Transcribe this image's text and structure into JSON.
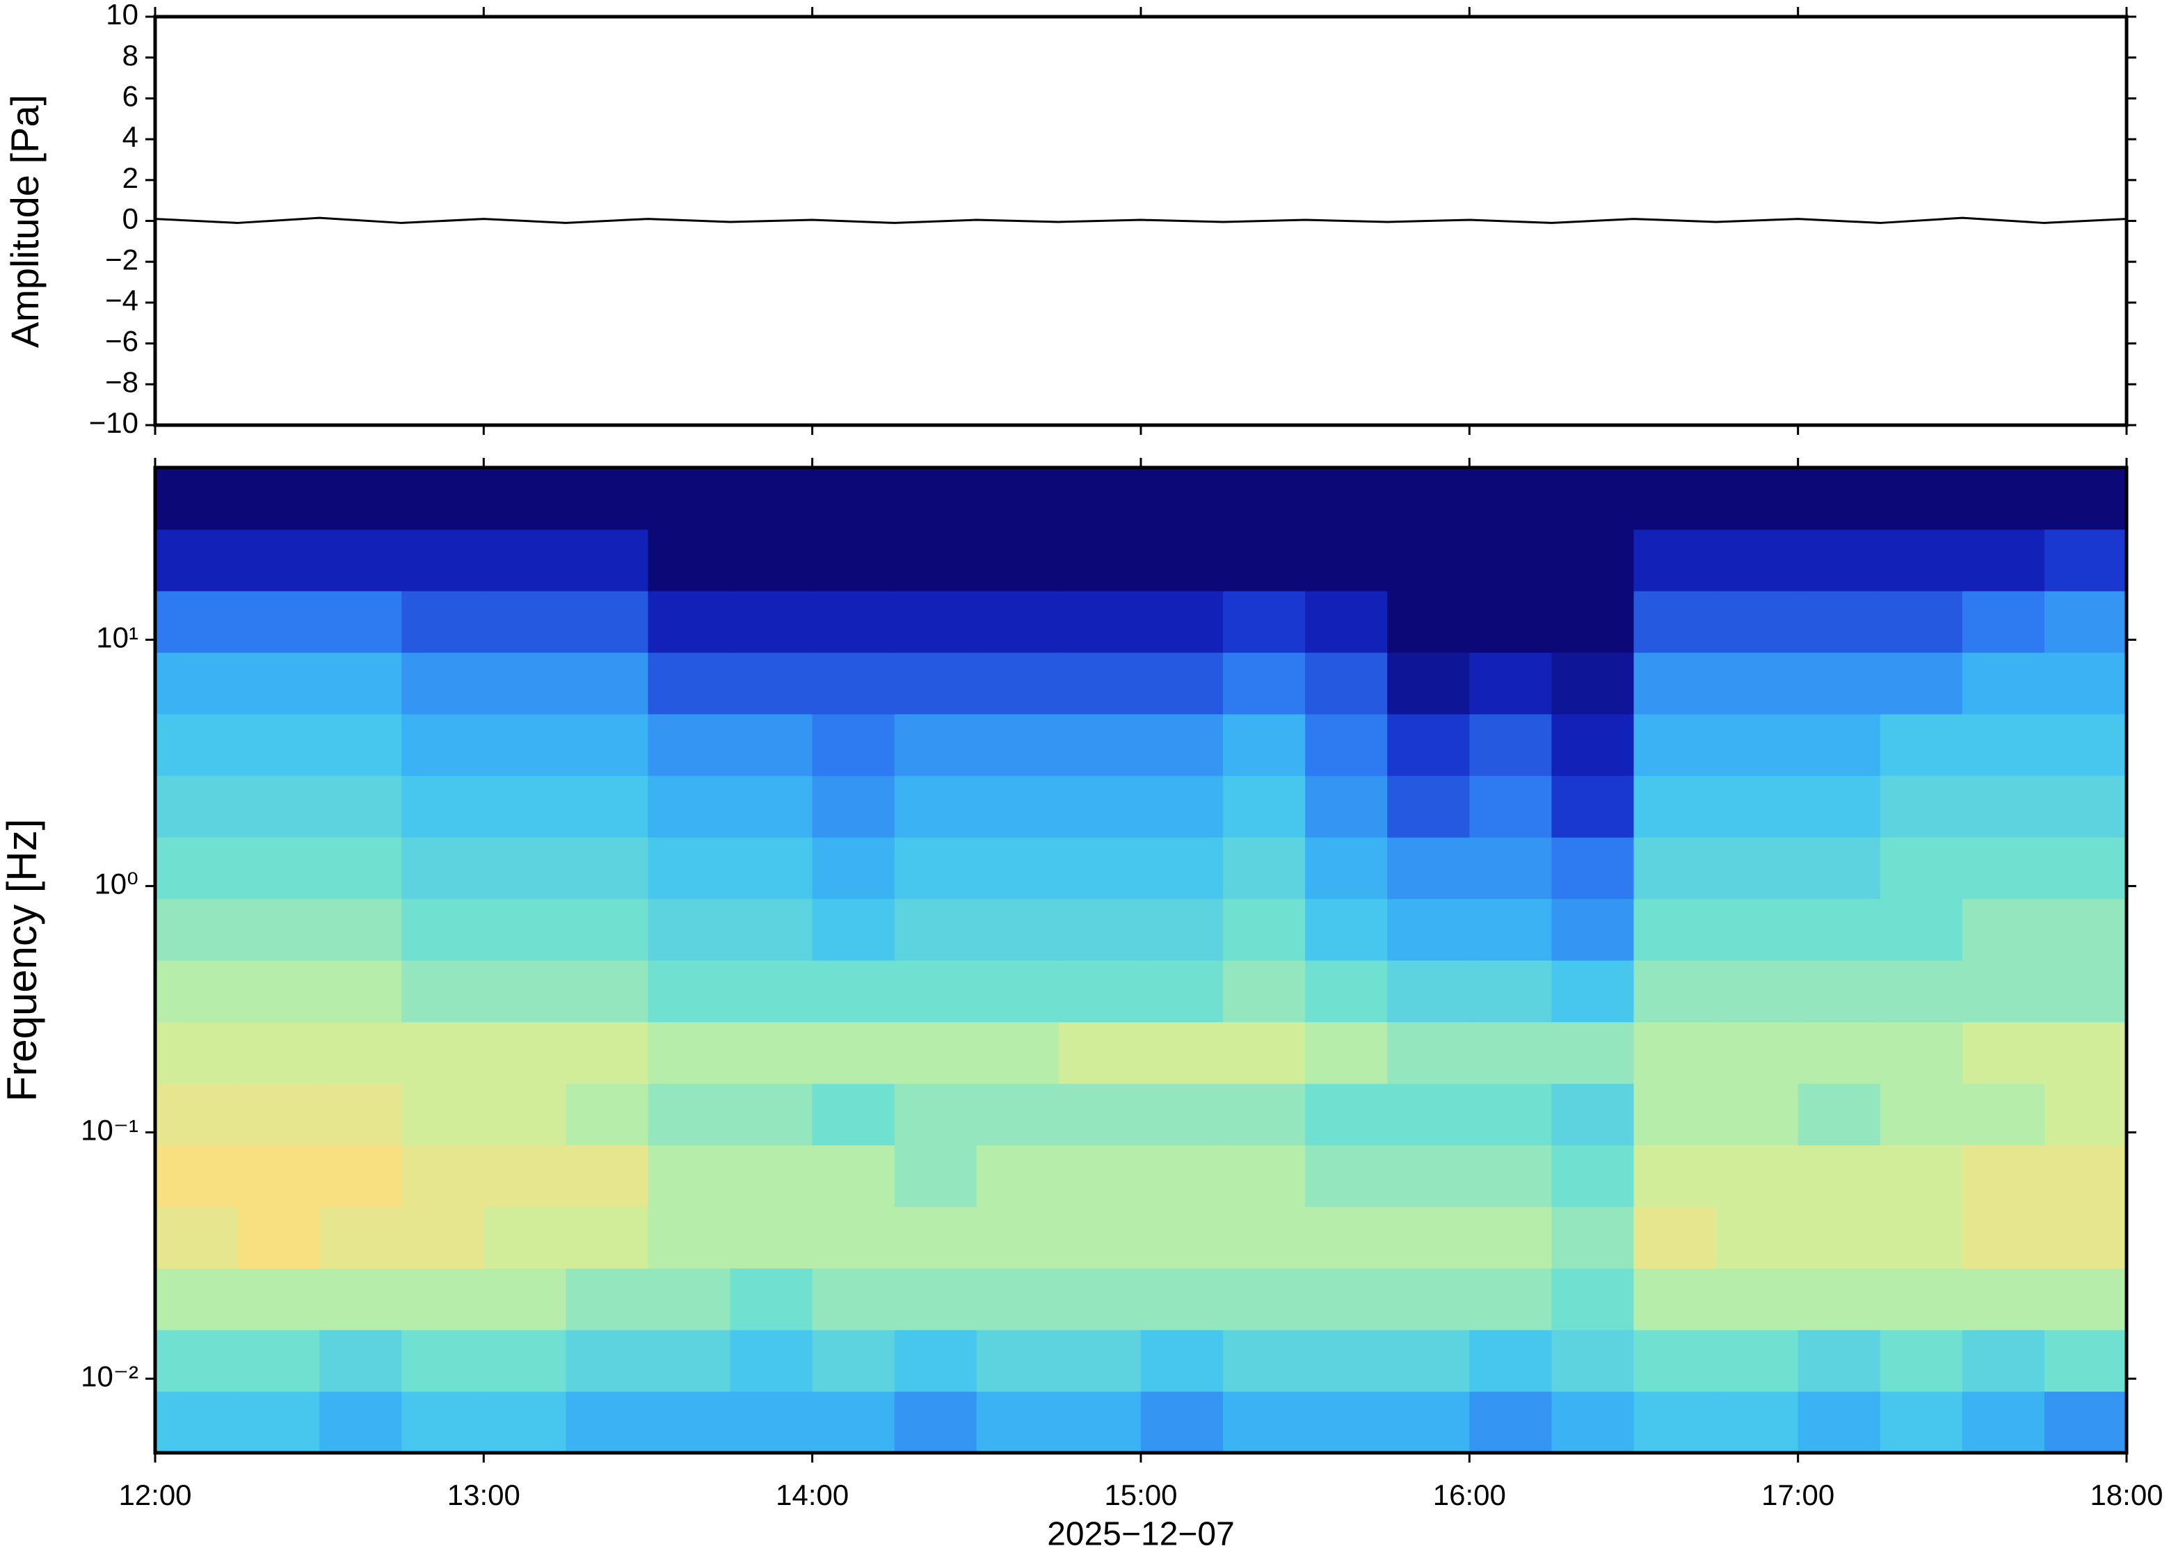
{
  "chart_data": [
    {
      "type": "line",
      "ylabel": "Amplitude [Pa]",
      "x": [
        12,
        12.25,
        12.5,
        12.75,
        13,
        13.25,
        13.5,
        13.75,
        14,
        14.25,
        14.5,
        14.75,
        15,
        15.25,
        15.5,
        15.75,
        16,
        16.25,
        16.5,
        16.75,
        17,
        17.25,
        17.5,
        17.75,
        18
      ],
      "series": [
        {
          "color": "#000000",
          "values": [
            0.1,
            -0.1,
            0.15,
            -0.1,
            0.1,
            -0.1,
            0.1,
            -0.05,
            0.05,
            -0.1,
            0.05,
            -0.05,
            0.05,
            -0.05,
            0.05,
            -0.05,
            0.05,
            -0.1,
            0.1,
            -0.05,
            0.1,
            -0.1,
            0.15,
            -0.1,
            0.1
          ]
        }
      ],
      "xlim": [
        12,
        18
      ],
      "xticks": [
        12,
        13,
        14,
        15,
        16,
        17,
        18
      ],
      "ylim": [
        -10,
        10
      ],
      "yticks": [
        {
          "value": -10,
          "label": "−10"
        },
        {
          "value": -8,
          "label": "−8"
        },
        {
          "value": -6,
          "label": "−6"
        },
        {
          "value": -4,
          "label": "−4"
        },
        {
          "value": -2,
          "label": "−2"
        },
        0,
        2,
        4,
        6,
        8,
        10
      ]
    },
    {
      "type": "heatmap",
      "ylabel": "Frequency [Hz]",
      "xlabel": "2025−12−07",
      "x_bins": [
        12,
        12.25,
        12.5,
        12.75,
        13,
        13.25,
        13.5,
        13.75,
        14,
        14.25,
        14.5,
        14.75,
        15,
        15.25,
        15.5,
        15.75,
        16,
        16.25,
        16.5,
        16.75,
        17,
        17.25,
        17.5,
        17.75,
        18
      ],
      "y_bins": [
        0.005,
        0.00889,
        0.0158,
        0.0281,
        0.05,
        0.0889,
        0.158,
        0.281,
        0.5,
        0.889,
        1.58,
        2.81,
        5,
        8.89,
        15.8,
        28.1,
        50
      ],
      "z": [
        [
          4,
          4,
          3.5,
          4,
          4,
          3.5,
          3.5,
          3.5,
          3.5,
          3,
          3.5,
          3.5,
          3,
          3.5,
          3.5,
          3.5,
          3,
          3.5,
          4,
          4,
          3.5,
          4,
          3.5,
          3
        ],
        [
          5,
          5,
          4.5,
          5,
          5,
          4.5,
          4.5,
          4,
          4.5,
          4,
          4.5,
          4.5,
          4,
          4.5,
          4.5,
          4.5,
          4,
          4.5,
          5,
          5,
          4.5,
          5,
          4.5,
          5
        ],
        [
          6,
          6,
          6,
          6,
          6,
          5.5,
          5.5,
          5,
          5.5,
          5.5,
          5.5,
          5.5,
          5.5,
          5.5,
          5.5,
          5.5,
          5.5,
          5,
          6,
          6,
          6,
          6,
          6,
          6
        ],
        [
          7,
          7.5,
          7,
          7,
          6.5,
          6.5,
          6,
          6,
          6,
          6,
          6,
          6,
          6,
          6,
          6,
          6,
          6,
          5.5,
          7,
          6.5,
          6.5,
          6.5,
          7,
          7
        ],
        [
          7.5,
          7.5,
          7.5,
          7,
          7,
          7,
          6,
          6,
          6,
          5.5,
          6,
          6,
          6,
          6,
          5.5,
          5.5,
          5.5,
          5,
          6.5,
          6.5,
          6.5,
          6.5,
          7,
          7
        ],
        [
          7,
          7,
          7,
          6.5,
          6.5,
          6,
          5.5,
          5.5,
          5,
          5.5,
          5.5,
          5.5,
          5.5,
          5.5,
          5,
          5,
          5,
          4.5,
          6,
          6,
          5.5,
          6,
          6,
          6.5
        ],
        [
          6.5,
          6.5,
          6.5,
          6.5,
          6.5,
          6.5,
          6,
          6,
          6,
          6,
          6,
          6.5,
          6.5,
          6.5,
          6,
          5.5,
          5.5,
          5.5,
          6,
          6,
          6,
          6,
          6.5,
          6.5
        ],
        [
          6,
          6,
          6,
          5.5,
          5.5,
          5.5,
          5,
          5,
          5,
          5,
          5,
          5,
          5,
          5.5,
          5,
          4.5,
          4.5,
          4,
          5.5,
          5.5,
          5.5,
          5.5,
          5.5,
          5.5
        ],
        [
          5.5,
          5.5,
          5.5,
          5,
          5,
          5,
          4.5,
          4.5,
          4,
          4.5,
          4.5,
          4.5,
          4.5,
          5,
          4,
          3.5,
          3.5,
          3,
          5,
          5,
          5,
          5,
          5.5,
          5.5
        ],
        [
          5,
          5,
          5,
          4.5,
          4.5,
          4.5,
          4,
          4,
          3.5,
          4,
          4,
          4,
          4,
          4.5,
          3.5,
          3,
          3,
          2.5,
          4.5,
          4.5,
          4.5,
          5,
          5,
          5
        ],
        [
          4.5,
          4.5,
          4.5,
          4,
          4,
          4,
          3.5,
          3.5,
          3,
          3.5,
          3.5,
          3.5,
          3.5,
          4,
          3,
          2,
          2.5,
          1.5,
          4,
          4,
          4,
          4.5,
          4.5,
          4.5
        ],
        [
          4,
          4,
          4,
          3.5,
          3.5,
          3.5,
          3,
          3,
          2.5,
          3,
          3,
          3,
          3,
          3.5,
          2.5,
          1.5,
          2,
          1,
          3.5,
          3.5,
          3.5,
          4,
          4,
          4
        ],
        [
          3.5,
          3.5,
          3.5,
          3,
          3,
          3,
          2,
          2,
          2,
          2,
          2,
          2,
          2,
          2.5,
          2,
          0.5,
          1,
          0.5,
          3,
          3,
          3,
          3,
          3.5,
          3.5
        ],
        [
          2.5,
          2.5,
          2.5,
          2,
          2,
          2,
          1,
          1,
          1,
          1,
          1,
          1,
          1,
          1.5,
          1,
          0,
          0,
          0,
          2,
          2,
          2,
          2,
          2.5,
          3
        ],
        [
          1,
          1,
          1,
          1,
          1,
          1,
          0,
          0,
          0,
          0,
          0,
          0,
          0,
          0,
          0,
          0,
          0,
          0,
          1,
          1,
          1,
          1,
          1,
          1.5
        ],
        [
          0,
          0,
          0,
          0,
          0,
          0,
          0,
          0,
          0,
          0,
          0,
          0,
          0,
          0,
          0,
          0,
          0,
          0,
          0,
          0,
          0,
          0,
          0,
          0
        ]
      ],
      "zlim": [
        0,
        10
      ],
      "colormap": [
        "#0c0877",
        "#1428c8",
        "#2e7af0",
        "#3dc0f5",
        "#70e0d0",
        "#c8f0a0",
        "#f8e080",
        "#f8a860",
        "#e04030"
      ],
      "xlim": [
        12,
        18
      ],
      "xticks": [
        {
          "value": 12,
          "label": "12:00"
        },
        {
          "value": 13,
          "label": "13:00"
        },
        {
          "value": 14,
          "label": "14:00"
        },
        {
          "value": 15,
          "label": "15:00"
        },
        {
          "value": 16,
          "label": "16:00"
        },
        {
          "value": 17,
          "label": "17:00"
        },
        {
          "value": 18,
          "label": "18:00"
        }
      ],
      "yscale": "log",
      "ylim": [
        0.005,
        50
      ],
      "yticks": [
        {
          "value": 0.01,
          "label": "10⁻²"
        },
        {
          "value": 0.1,
          "label": "10⁻¹"
        },
        {
          "value": 1,
          "label": "10⁰"
        },
        {
          "value": 10,
          "label": "10¹"
        }
      ]
    }
  ]
}
